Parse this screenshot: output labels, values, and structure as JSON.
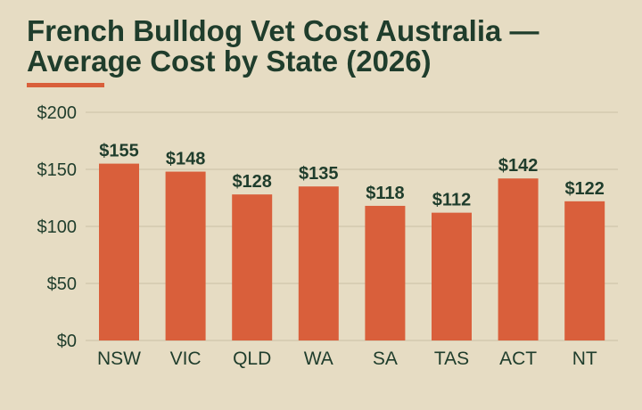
{
  "page": {
    "title": "French Bulldog Vet Cost Australia — Average Cost by State (2026)"
  },
  "colors": {
    "background": "#e6dcc3",
    "title": "#1f3d2c",
    "accent": "#d95f3b",
    "bar": "#d95f3b",
    "grid": "#cbc1a6",
    "axis_text": "#1f3d2c"
  },
  "chart_data": {
    "type": "bar",
    "title": "French Bulldog Vet Cost Australia — Average Cost by State (2026)",
    "xlabel": "",
    "ylabel": "",
    "categories": [
      "NSW",
      "VIC",
      "QLD",
      "WA",
      "SA",
      "TAS",
      "ACT",
      "NT"
    ],
    "values": [
      155,
      148,
      128,
      135,
      118,
      112,
      142,
      122
    ],
    "value_labels": [
      "$155",
      "$148",
      "$128",
      "$135",
      "$118",
      "$112",
      "$142",
      "$122"
    ],
    "ylim": [
      0,
      200
    ],
    "yticks": [
      0,
      50,
      100,
      150,
      200
    ],
    "ytick_labels": [
      "$0",
      "$50",
      "$100",
      "$150",
      "$200"
    ],
    "grid": true,
    "legend": "none"
  }
}
